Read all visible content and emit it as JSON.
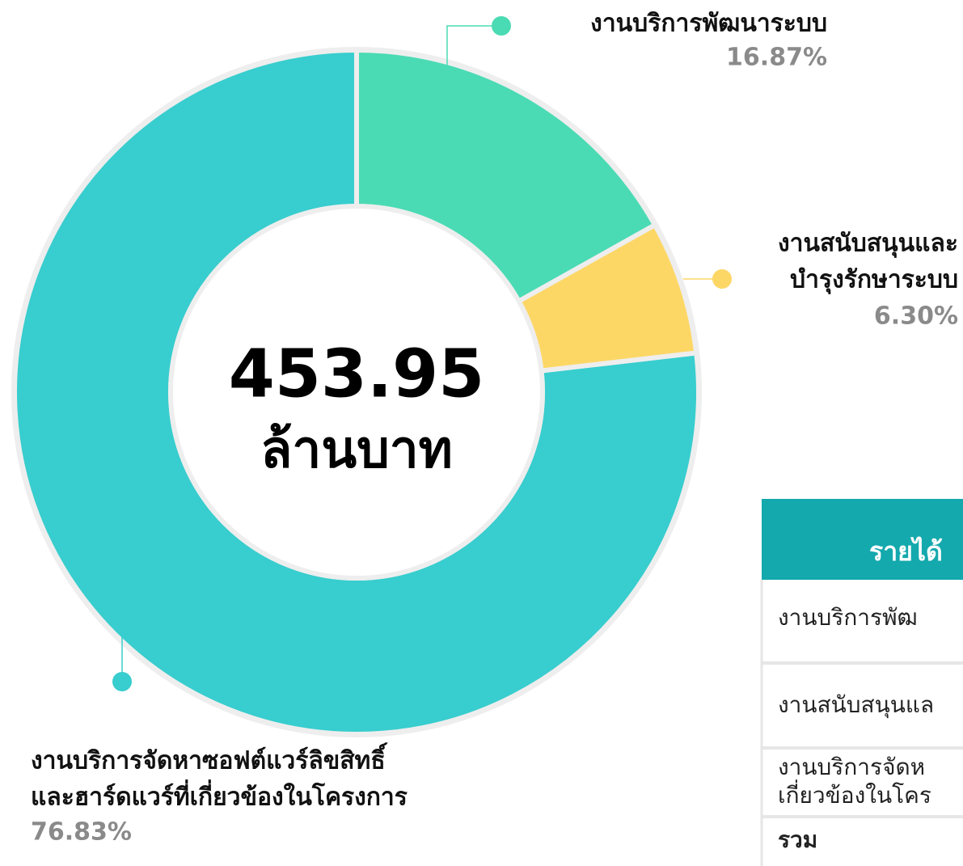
{
  "chart_data": {
    "type": "donut",
    "categories": [
      [
        "งานบริการพัฒนาระบบ"
      ],
      [
        "งานสนับสนุนและ",
        "บำรุงรักษาระบบ"
      ],
      [
        "งานบริการจัดหาซอฟต์แวร์ลิขสิทธิ์",
        "และฮาร์ดแวร์ที่เกี่ยวข้องในโครงการ"
      ]
    ],
    "values": [
      16.87,
      6.3,
      76.83
    ],
    "value_labels": [
      "16.87%",
      "6.30%",
      "76.83%"
    ],
    "colors": [
      "#4adbb4",
      "#fdd766",
      "#38cdce"
    ],
    "total": 453.95,
    "total_unit": "ล้านบาท"
  },
  "table": {
    "header": "รายได้",
    "rows": [
      [
        "งานบริการพัฒ"
      ],
      [
        "งานสนับสนุนแล"
      ],
      [
        "งานบริการจัดห",
        "เกี่ยวข้องในโคร"
      ],
      [
        "รวม"
      ]
    ]
  }
}
